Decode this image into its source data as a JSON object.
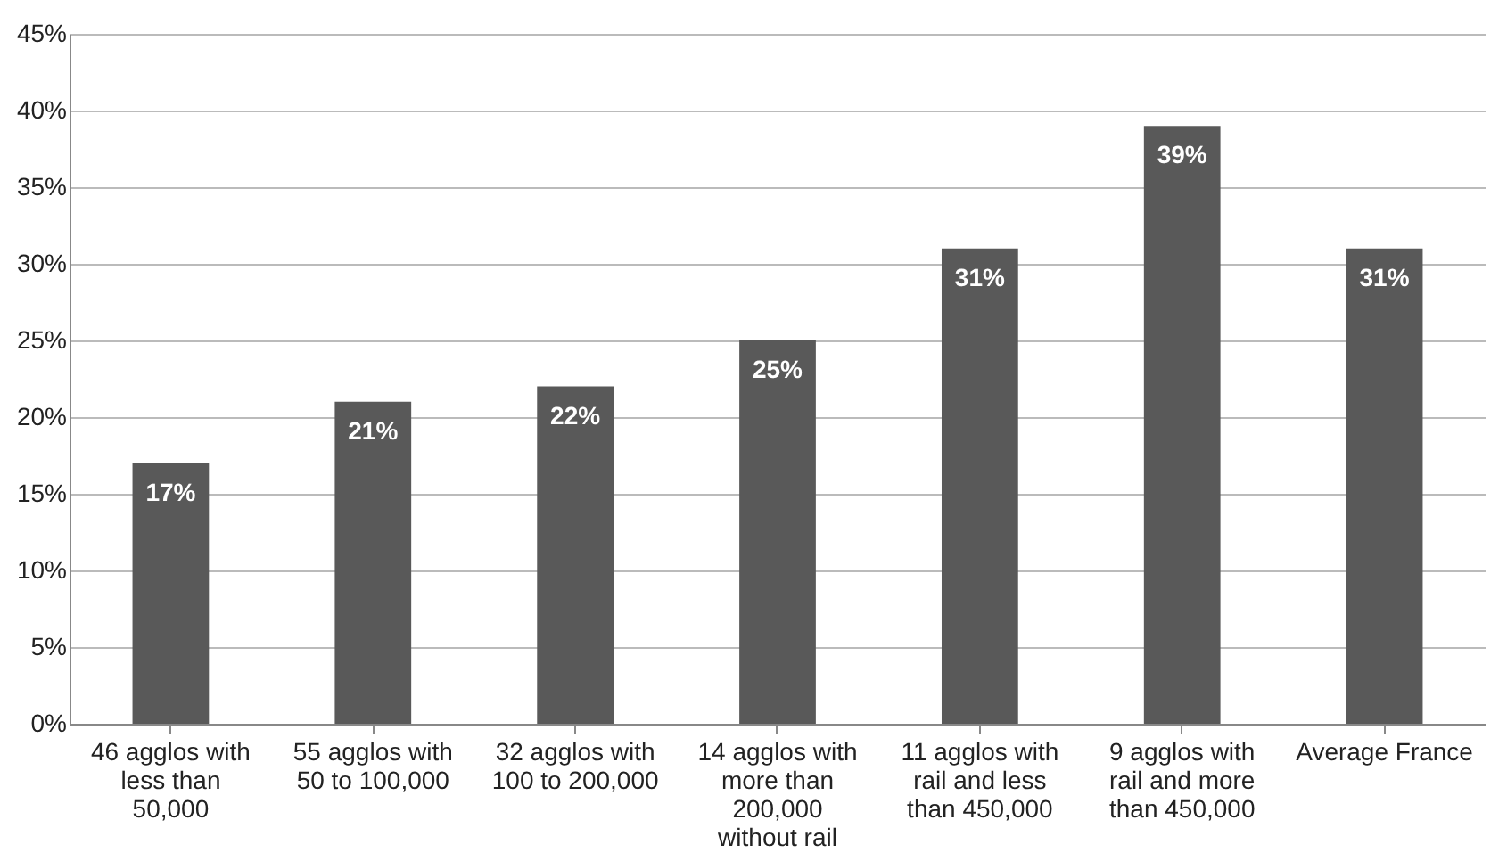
{
  "chart_data": {
    "type": "bar",
    "categories": [
      "46 agglos with less than 50,000",
      "55 agglos with 50 to 100,000",
      "32 agglos with 100 to 200,000",
      "14 agglos with more than 200,000 without rail",
      "11 agglos with rail and less than 450,000",
      "9 agglos with rail and more than 450,000",
      "Average France"
    ],
    "values": [
      17,
      21,
      22,
      25,
      31,
      39,
      31
    ],
    "value_labels": [
      "17%",
      "21%",
      "22%",
      "25%",
      "31%",
      "39%",
      "31%"
    ],
    "color": "#595959",
    "ylim": [
      0,
      45
    ],
    "yticks": [
      {
        "value": 0,
        "label": "0%"
      },
      {
        "value": 5,
        "label": "5%"
      },
      {
        "value": 10,
        "label": "10%"
      },
      {
        "value": 15,
        "label": "15%"
      },
      {
        "value": 20,
        "label": "20%"
      },
      {
        "value": 25,
        "label": "25%"
      },
      {
        "value": 30,
        "label": "30%"
      },
      {
        "value": 35,
        "label": "35%"
      },
      {
        "value": 40,
        "label": "40%"
      },
      {
        "value": 45,
        "label": "45%"
      }
    ],
    "grid": "y"
  }
}
